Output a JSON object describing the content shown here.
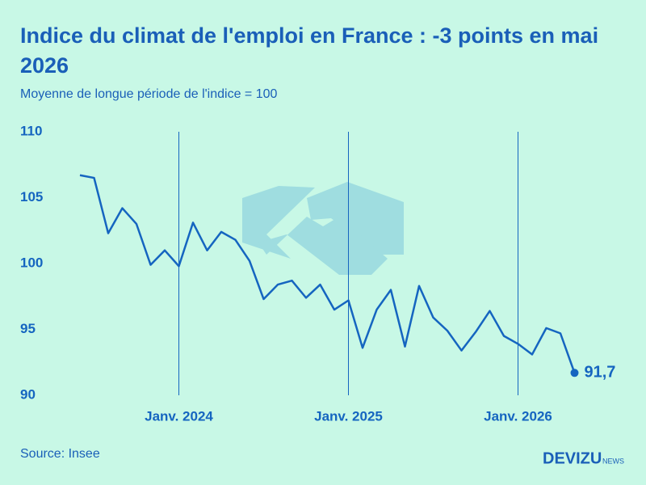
{
  "chart_data": {
    "type": "line",
    "title": "Indice du climat de l'emploi en France : -3 points en mai 2026",
    "subtitle": "Moyenne de longue période de l'indice = 100",
    "source": "Source: Insee",
    "categories": [
      null,
      null,
      null,
      null,
      null,
      null,
      null,
      "Janv. 2024",
      null,
      null,
      null,
      null,
      null,
      null,
      null,
      null,
      null,
      null,
      null,
      "Janv. 2025",
      null,
      null,
      null,
      null,
      null,
      null,
      null,
      null,
      null,
      null,
      null,
      "Janv. 2026",
      null,
      null,
      null,
      null
    ],
    "values": [
      106.7,
      106.5,
      102.3,
      104.2,
      103.0,
      99.9,
      101.0,
      99.8,
      103.1,
      101.0,
      102.4,
      101.8,
      100.2,
      97.3,
      98.4,
      98.7,
      97.4,
      98.4,
      96.5,
      97.2,
      93.6,
      96.5,
      98.0,
      93.7,
      98.3,
      95.9,
      94.9,
      93.4,
      94.8,
      96.4,
      94.5,
      93.9,
      93.1,
      95.1,
      94.7,
      91.7
    ],
    "value_labels": [
      null,
      null,
      null,
      null,
      null,
      null,
      null,
      null,
      null,
      null,
      null,
      null,
      null,
      null,
      null,
      null,
      null,
      null,
      null,
      null,
      null,
      null,
      null,
      null,
      null,
      null,
      null,
      null,
      null,
      null,
      null,
      null,
      null,
      null,
      null,
      "91,7"
    ],
    "color": "#1565c0",
    "ylim": [
      90,
      110
    ],
    "yticks": [
      90,
      95,
      100,
      105,
      110
    ],
    "grid": false
  },
  "logo": {
    "name": "DEVIZU",
    "suffix": "NEWS"
  }
}
